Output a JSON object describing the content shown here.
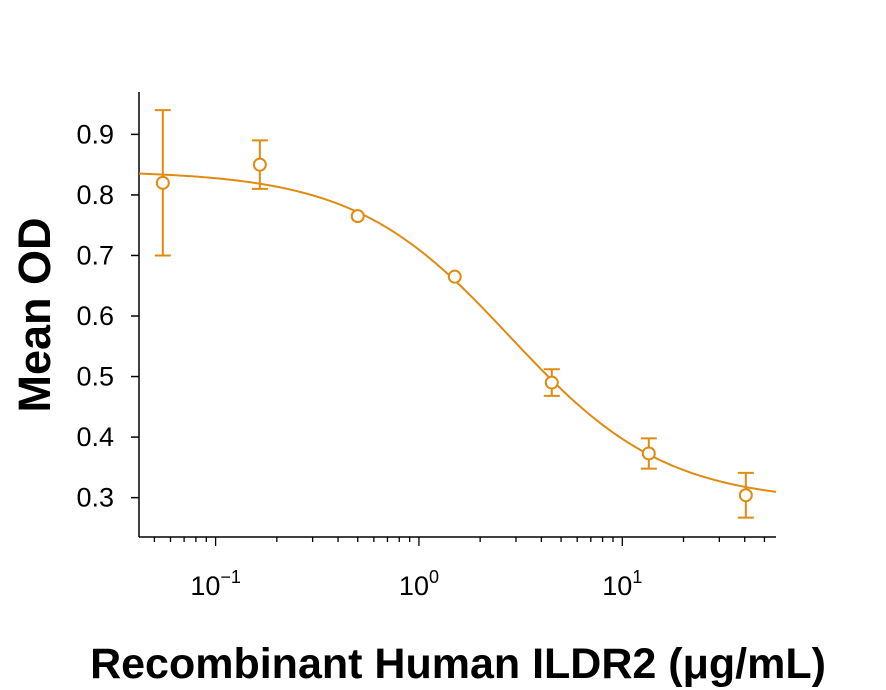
{
  "chart_data": {
    "type": "scatter",
    "title": "",
    "xlabel": "Recombinant Human ILDR2 (μg/mL)",
    "ylabel": "Mean OD",
    "x_scale": "log",
    "xlim": [
      0.042,
      57
    ],
    "ylim": [
      0.235,
      0.97
    ],
    "x_ticks": [
      {
        "value": 0.1,
        "base": "10",
        "exp": "−1"
      },
      {
        "value": 1,
        "base": "10",
        "exp": "0"
      },
      {
        "value": 10,
        "base": "10",
        "exp": "1"
      }
    ],
    "y_ticks": [
      {
        "value": 0.3,
        "label": "0.3"
      },
      {
        "value": 0.4,
        "label": "0.4"
      },
      {
        "value": 0.5,
        "label": "0.5"
      },
      {
        "value": 0.6,
        "label": "0.6"
      },
      {
        "value": 0.7,
        "label": "0.7"
      },
      {
        "value": 0.8,
        "label": "0.8"
      },
      {
        "value": 0.9,
        "label": "0.9"
      }
    ],
    "grid": false,
    "legend": "none",
    "color": "#E08A12",
    "points": [
      {
        "x": 0.055,
        "y": 0.82,
        "err_low": 0.7,
        "err_high": 0.94
      },
      {
        "x": 0.165,
        "y": 0.85,
        "err_low": 0.81,
        "err_high": 0.89
      },
      {
        "x": 0.5,
        "y": 0.765,
        "err_low": 0.765,
        "err_high": 0.765
      },
      {
        "x": 1.5,
        "y": 0.665,
        "err_low": 0.665,
        "err_high": 0.665
      },
      {
        "x": 4.5,
        "y": 0.49,
        "err_low": 0.468,
        "err_high": 0.512
      },
      {
        "x": 13.5,
        "y": 0.373,
        "err_low": 0.348,
        "err_high": 0.398
      },
      {
        "x": 40.5,
        "y": 0.304,
        "err_low": 0.267,
        "err_high": 0.341
      }
    ],
    "fit": {
      "model": "4PL",
      "top": 0.84,
      "bottom": 0.292,
      "ec50": 2.8,
      "hill": 1.13
    }
  }
}
